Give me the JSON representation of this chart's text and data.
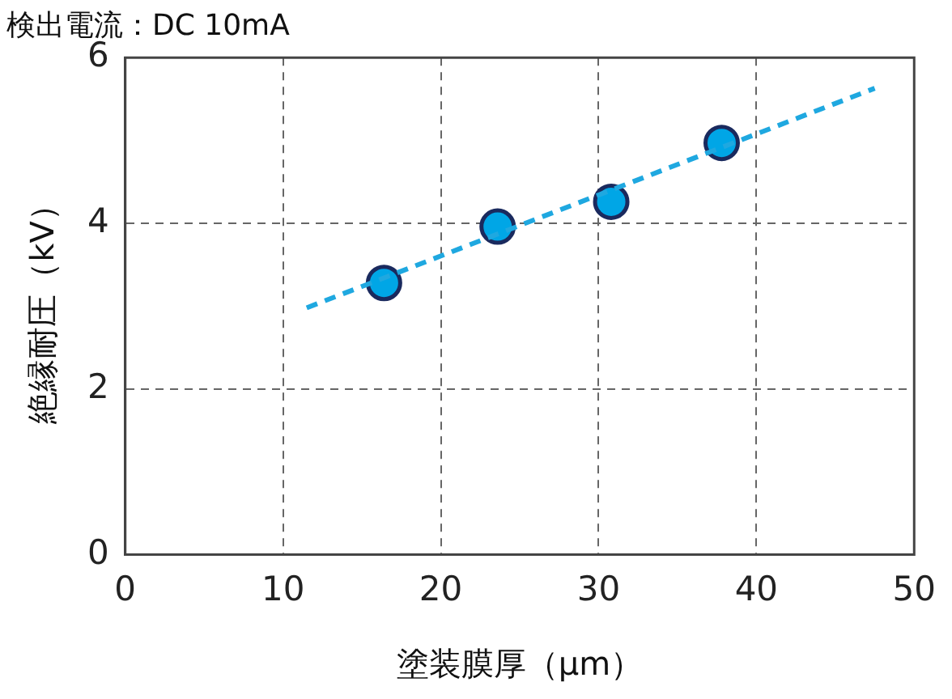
{
  "chart_data": {
    "type": "scatter",
    "title": "検出電流：DC 10mA",
    "xlabel": "塗装膜厚（μm）",
    "ylabel": "絶縁耐圧（kV）",
    "xlim": [
      0,
      50
    ],
    "xticks": [
      0,
      10,
      20,
      30,
      40,
      50
    ],
    "ylim": [
      0,
      6
    ],
    "yticks": [
      0,
      2,
      4,
      6
    ],
    "grid": true,
    "legend": false,
    "series": [
      {
        "type": "line",
        "color": "#1fa8e0",
        "x": [
          11.5,
          47.5
        ],
        "values": [
          2.98,
          5.63
        ],
        "marker": "none",
        "line_style": "dashed"
      },
      {
        "color": "#00a6e6",
        "x": [
          16.4,
          23.6,
          30.8,
          37.8
        ],
        "values": [
          3.28,
          3.96,
          4.26,
          4.97
        ],
        "marker": "circle"
      }
    ]
  }
}
